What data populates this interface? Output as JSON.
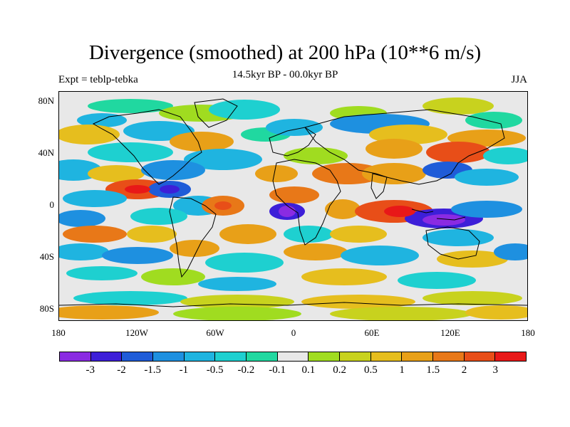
{
  "title": "Divergence (smoothed) at 200 hPa (10**6 m/s)",
  "subtitle_left": "Expt = teblp-tebka",
  "subtitle_center": "14.5kyr BP - 00.0kyr BP",
  "subtitle_right": "JJA",
  "y_ticks": [
    "80N",
    "40N",
    "0",
    "40S",
    "80S"
  ],
  "x_ticks": [
    "180",
    "120W",
    "60W",
    "0",
    "60E",
    "120E",
    "180"
  ],
  "colorbar": {
    "colors": [
      "#8a2be2",
      "#3d1fd8",
      "#1f5cd8",
      "#1e90e0",
      "#1fb4e0",
      "#1ed0d0",
      "#20d8a0",
      "#e8e8e8",
      "#a0dc20",
      "#c8d21e",
      "#e6be1e",
      "#e8a018",
      "#e87818",
      "#e84e18",
      "#e81818"
    ],
    "labels": [
      "-3",
      "-2",
      "-1.5",
      "-1",
      "-0.5",
      "-0.2",
      "-0.1",
      "0.1",
      "0.2",
      "0.5",
      "1",
      "1.5",
      "2",
      "3"
    ]
  }
}
